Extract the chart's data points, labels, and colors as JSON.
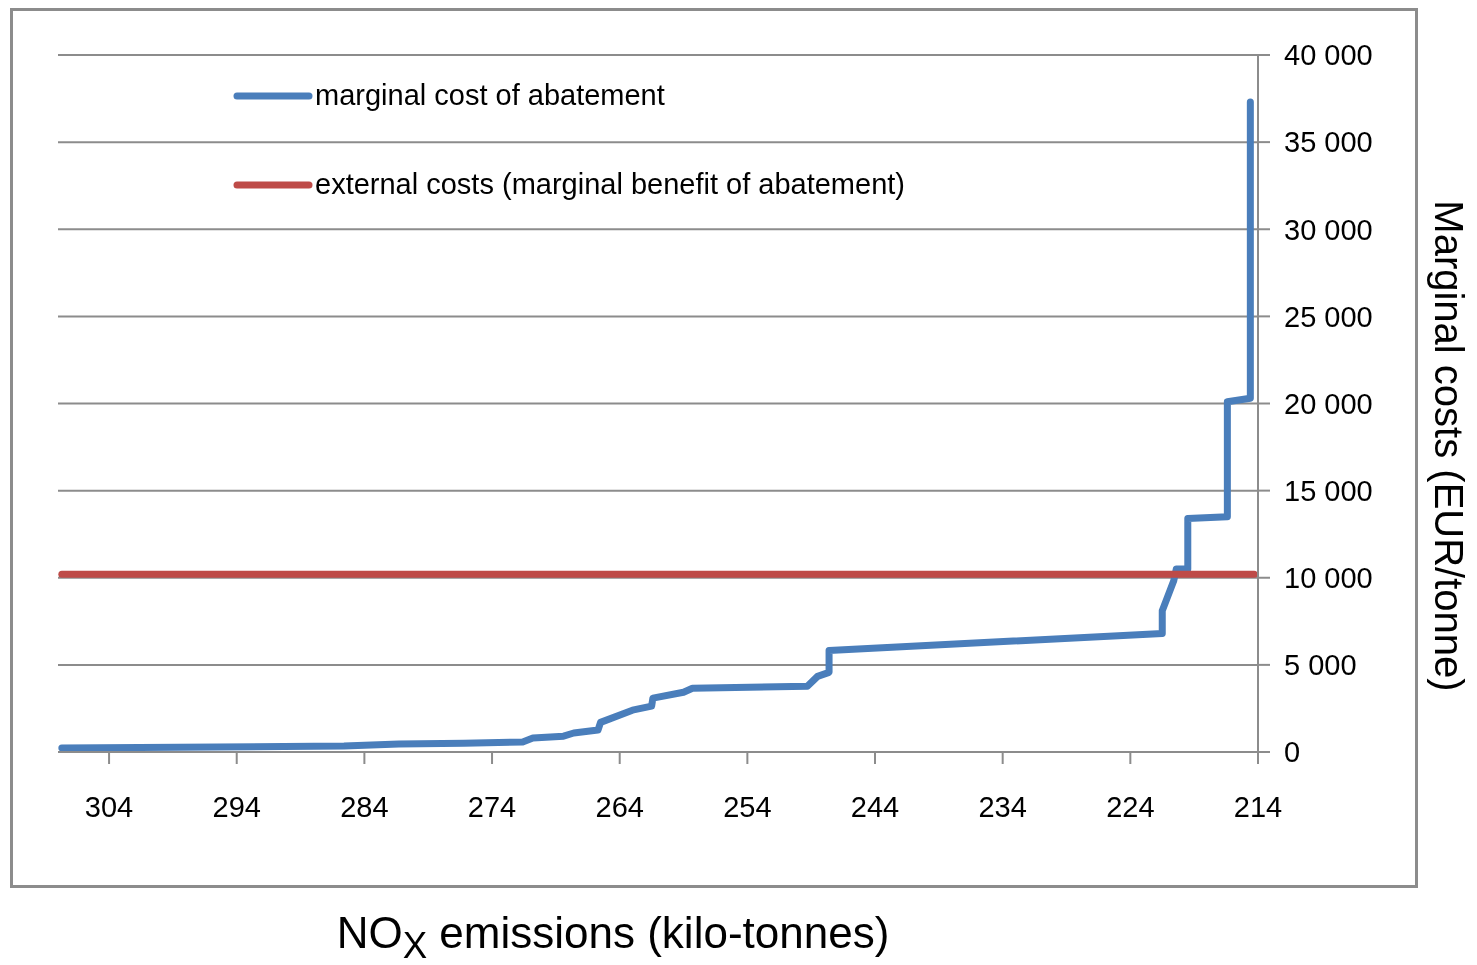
{
  "chart_data": {
    "type": "line",
    "xlabel": "NO$_{X}$ emissions (kilo-tonnes)",
    "ylabel": "Marginal costs (EUR/tonne)",
    "xlim": [
      308,
      214
    ],
    "xticks": [
      304,
      294,
      284,
      274,
      264,
      254,
      244,
      234,
      224,
      214
    ],
    "ylim": [
      0,
      40000
    ],
    "yticks": [
      {
        "value": 0,
        "label": "0"
      },
      {
        "value": 5000,
        "label": "5 000"
      },
      {
        "value": 10000,
        "label": "10 000"
      },
      {
        "value": 15000,
        "label": "15 000"
      },
      {
        "value": 20000,
        "label": "20 000"
      },
      {
        "value": 25000,
        "label": "25 000"
      },
      {
        "value": 30000,
        "label": "30 000"
      },
      {
        "value": 35000,
        "label": "35 000"
      },
      {
        "value": 40000,
        "label": "40 000"
      }
    ],
    "grid": "y",
    "legend": "top left",
    "marker": "none",
    "line_style": "solid",
    "series": [
      {
        "name": "marginal cost of abatement",
        "color": "#4a7ebb",
        "x": [
          307.7,
          285.6,
          281.3,
          276.2,
          271.6,
          270.8,
          268.4,
          267.6,
          265.7,
          265.5,
          263.0,
          261.5,
          261.4,
          259.0,
          258.3,
          249.3,
          248.5,
          247.6,
          247.6,
          221.5,
          221.5,
          220.6,
          220.4,
          219.5,
          219.5,
          216.4,
          216.4,
          214.6,
          214.6
        ],
        "values": [
          230,
          340,
          460,
          500,
          570,
          800,
          910,
          1090,
          1260,
          1700,
          2400,
          2630,
          3090,
          3430,
          3660,
          3770,
          4340,
          4570,
          5830,
          6800,
          8110,
          9830,
          10500,
          10500,
          13400,
          13500,
          20100,
          20300,
          37300
        ]
      },
      {
        "name": "external costs (marginal benefit of abatement)",
        "color": "#be4b48",
        "x": [
          307.7,
          214.3
        ],
        "values": [
          10200,
          10200
        ]
      }
    ]
  }
}
